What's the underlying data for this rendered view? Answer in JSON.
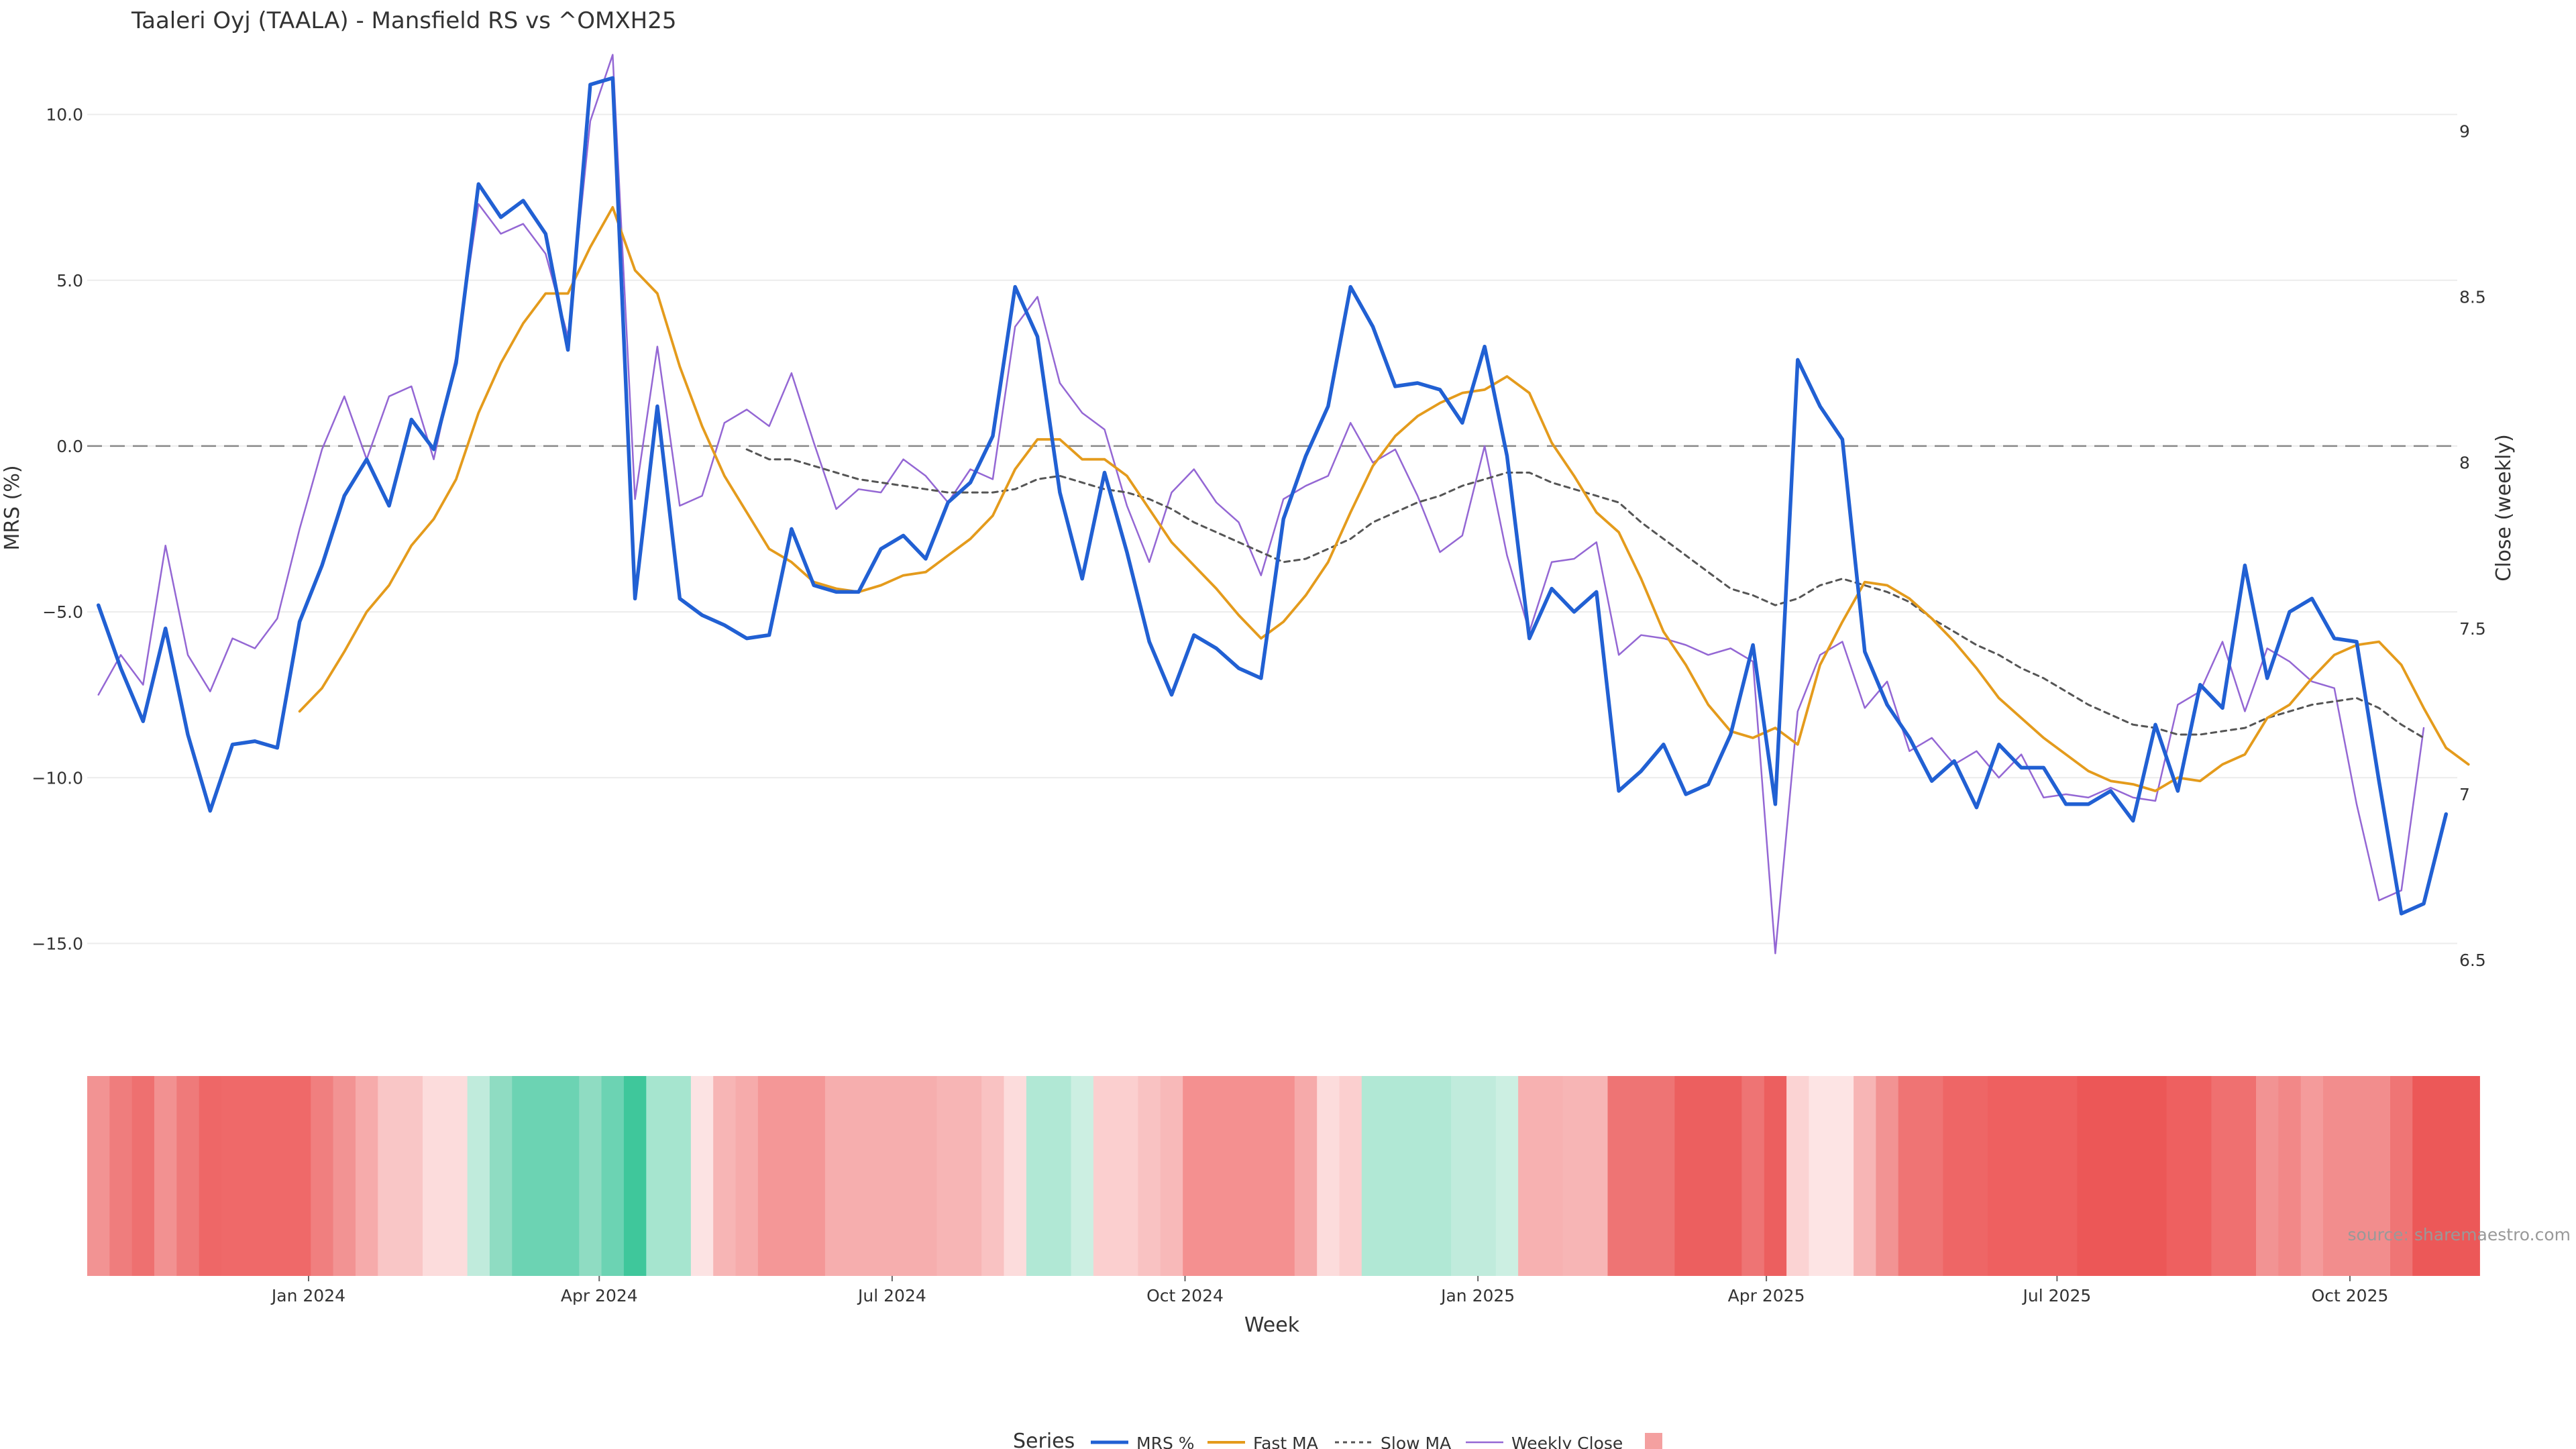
{
  "chart_data": {
    "type": "line",
    "title": "Taaleri Oyj (TAALA) - Mansfield RS vs ^OMXH25",
    "xlabel": "Week",
    "ylabel_left": "MRS (%)",
    "ylabel_right": "Close (weekly)",
    "ylim_left": [
      -17.5,
      12.5
    ],
    "ylim_right": [
      6.3,
      9.3
    ],
    "yticks_left": [
      10,
      5,
      0,
      -5,
      -10,
      -15
    ],
    "ytick_labels_left": [
      "10.0",
      "5.0",
      "0.0",
      "−5.0",
      "−10.0",
      "−15.0"
    ],
    "yticks_right": [
      9,
      8.5,
      8,
      7.5,
      7,
      6.5
    ],
    "ytick_labels_right": [
      "9",
      "8.5",
      "8",
      "7.5",
      "7",
      "6.5"
    ],
    "x_start_week": 0,
    "x_end_week": 106,
    "xticks": [
      {
        "label": "Jan 2024",
        "week": 9.9
      },
      {
        "label": "Apr 2024",
        "week": 22.9
      },
      {
        "label": "Jul 2024",
        "week": 36
      },
      {
        "label": "Oct 2024",
        "week": 49.1
      },
      {
        "label": "Jan 2025",
        "week": 62.2
      },
      {
        "label": "Apr 2025",
        "week": 75.1
      },
      {
        "label": "Jul 2025",
        "week": 88.1
      },
      {
        "label": "Oct 2025",
        "week": 101.2
      }
    ],
    "zero_line": 0,
    "series": [
      {
        "name": "MRS %",
        "color": "#2160d3",
        "style": "solid",
        "axis": "left",
        "start": 0.5,
        "values": [
          -4.8,
          -6.7,
          -8.3,
          -5.5,
          -8.7,
          -11.0,
          -9.0,
          -8.9,
          -9.1,
          -5.3,
          -3.6,
          -1.5,
          -0.4,
          -1.8,
          0.8,
          -0.1,
          2.5,
          7.9,
          6.9,
          7.4,
          6.4,
          2.9,
          10.9,
          11.1,
          -4.6,
          1.2,
          -4.6,
          -5.1,
          -5.4,
          -5.8,
          -5.7,
          -2.5,
          -4.2,
          -4.4,
          -4.4,
          -3.1,
          -2.7,
          -3.4,
          -1.7,
          -1.1,
          0.3,
          4.8,
          3.3,
          -1.4,
          -4.0,
          -0.8,
          -3.2,
          -5.9,
          -7.5,
          -5.7,
          -6.1,
          -6.7,
          -7.0,
          -2.2,
          -0.3,
          1.2,
          4.8,
          3.6,
          1.8,
          1.9,
          1.7,
          0.7,
          3.0,
          -0.3,
          -5.8,
          -4.3,
          -5.0,
          -4.4,
          -10.4,
          -9.8,
          -9.0,
          -10.5,
          -10.2,
          -8.7,
          -6.0,
          -10.8,
          2.6,
          1.2,
          0.2,
          -6.2,
          -7.8,
          -8.8,
          -10.1,
          -9.5,
          -10.9,
          -9.0,
          -9.7,
          -9.7,
          -10.8,
          -10.8,
          -10.4,
          -11.3,
          -8.4,
          -10.4,
          -7.2,
          -7.9,
          -3.6,
          -7.0,
          -5.0,
          -4.6,
          -5.8,
          -5.9,
          -10.1,
          -14.1,
          -13.8,
          -11.1
        ]
      },
      {
        "name": "Fast MA",
        "color": "#e49b1c",
        "style": "solid",
        "axis": "left",
        "start": 9.5,
        "values": [
          -8.0,
          -7.3,
          -6.2,
          -5.0,
          -4.2,
          -3.0,
          -2.2,
          -1.0,
          1.0,
          2.5,
          3.7,
          4.6,
          4.6,
          6.0,
          7.2,
          5.3,
          4.6,
          2.4,
          0.6,
          -0.9,
          -2.0,
          -3.1,
          -3.5,
          -4.1,
          -4.3,
          -4.4,
          -4.2,
          -3.9,
          -3.8,
          -3.3,
          -2.8,
          -2.1,
          -0.7,
          0.2,
          0.2,
          -0.4,
          -0.4,
          -0.9,
          -1.9,
          -2.9,
          -3.6,
          -4.3,
          -5.1,
          -5.8,
          -5.3,
          -4.5,
          -3.5,
          -2.0,
          -0.6,
          0.3,
          0.9,
          1.3,
          1.6,
          1.7,
          2.1,
          1.6,
          0.1,
          -0.9,
          -2.0,
          -2.6,
          -4.0,
          -5.6,
          -6.6,
          -7.8,
          -8.6,
          -8.8,
          -8.5,
          -9.0,
          -6.6,
          -5.3,
          -4.1,
          -4.2,
          -4.6,
          -5.2,
          -5.9,
          -6.7,
          -7.6,
          -8.2,
          -8.8,
          -9.3,
          -9.8,
          -10.1,
          -10.2,
          -10.4,
          -10.0,
          -10.1,
          -9.6,
          -9.3,
          -8.2,
          -7.8,
          -7.0,
          -6.3,
          -6.0,
          -5.9,
          -6.6,
          -7.9,
          -9.1,
          -9.6
        ]
      },
      {
        "name": "Slow MA",
        "color": "#555555",
        "style": "dashed",
        "axis": "left",
        "start": 29.5,
        "values": [
          -0.1,
          -0.4,
          -0.4,
          -0.6,
          -0.8,
          -1.0,
          -1.1,
          -1.2,
          -1.3,
          -1.4,
          -1.4,
          -1.4,
          -1.3,
          -1.0,
          -0.9,
          -1.1,
          -1.3,
          -1.4,
          -1.6,
          -1.9,
          -2.3,
          -2.6,
          -2.9,
          -3.2,
          -3.5,
          -3.4,
          -3.1,
          -2.8,
          -2.3,
          -2.0,
          -1.7,
          -1.5,
          -1.2,
          -1.0,
          -0.8,
          -0.8,
          -1.1,
          -1.3,
          -1.5,
          -1.7,
          -2.3,
          -2.8,
          -3.3,
          -3.8,
          -4.3,
          -4.5,
          -4.8,
          -4.6,
          -4.2,
          -4.0,
          -4.2,
          -4.4,
          -4.7,
          -5.2,
          -5.6,
          -6.0,
          -6.3,
          -6.7,
          -7.0,
          -7.4,
          -7.8,
          -8.1,
          -8.4,
          -8.5,
          -8.7,
          -8.7,
          -8.6,
          -8.5,
          -8.2,
          -8.0,
          -7.8,
          -7.7,
          -7.6,
          -7.9,
          -8.4,
          -8.8
        ]
      },
      {
        "name": "Weekly Close",
        "color": "#9467d4",
        "style": "thin",
        "axis": "right",
        "start": 0.5,
        "values": [
          7.3,
          7.42,
          7.33,
          7.75,
          7.42,
          7.31,
          7.47,
          7.44,
          7.53,
          7.8,
          8.04,
          8.2,
          8.01,
          8.2,
          8.23,
          8.01,
          8.32,
          8.78,
          8.69,
          8.72,
          8.63,
          8.38,
          9.03,
          9.23,
          7.89,
          8.35,
          7.87,
          7.9,
          8.12,
          8.16,
          8.11,
          8.27,
          8.06,
          7.86,
          7.92,
          7.91,
          8.01,
          7.96,
          7.88,
          7.98,
          7.95,
          8.41,
          8.5,
          8.24,
          8.15,
          8.1,
          7.87,
          7.7,
          7.91,
          7.98,
          7.88,
          7.82,
          7.66,
          7.89,
          7.93,
          7.96,
          8.12,
          8.0,
          8.04,
          7.9,
          7.73,
          7.78,
          8.05,
          7.72,
          7.49,
          7.7,
          7.71,
          7.76,
          7.42,
          7.48,
          7.47,
          7.45,
          7.42,
          7.44,
          7.4,
          6.52,
          7.25,
          7.42,
          7.46,
          7.26,
          7.34,
          7.13,
          7.17,
          7.09,
          7.13,
          7.05,
          7.12,
          6.99,
          7.0,
          6.99,
          7.02,
          6.99,
          6.98,
          7.27,
          7.31,
          7.46,
          7.25,
          7.44,
          7.4,
          7.34,
          7.32,
          6.97,
          6.68,
          6.71,
          7.2
        ]
      }
    ],
    "heatmap": {
      "label": "MRS % heat strip",
      "start": 0,
      "cells": [
        [
          "#f29393",
          1
        ],
        [
          "#ef7d7d",
          1
        ],
        [
          "#ee7070",
          1
        ],
        [
          "#f29191",
          1
        ],
        [
          "#ef7a7a",
          1
        ],
        [
          "#ee6767",
          1
        ],
        [
          "#ef6969",
          4
        ],
        [
          "#f07f7f",
          1
        ],
        [
          "#f29393",
          1
        ],
        [
          "#f6abab",
          1
        ],
        [
          "#f9c6c6",
          2
        ],
        [
          "#fcdcdc",
          2
        ],
        [
          "#c0ebdc",
          1
        ],
        [
          "#8fdcc2",
          1
        ],
        [
          "#6cd3b3",
          3
        ],
        [
          "#8fdcc2",
          1
        ],
        [
          "#6cd3b3",
          1
        ],
        [
          "#3fc79b",
          1
        ],
        [
          "#a6e5cf",
          2
        ],
        [
          "#fce3e3",
          1
        ],
        [
          "#f7b5b5",
          1
        ],
        [
          "#f6abab",
          1
        ],
        [
          "#f49797",
          3
        ],
        [
          "#f6aeae",
          5
        ],
        [
          "#f7b5b5",
          2
        ],
        [
          "#f9c2c2",
          1
        ],
        [
          "#fcdcdc",
          1
        ],
        [
          "#b1e8d5",
          2
        ],
        [
          "#ccefe2",
          1
        ],
        [
          "#fbcfcf",
          2
        ],
        [
          "#f9c2c2",
          1
        ],
        [
          "#f8b9b9",
          1
        ],
        [
          "#f49090",
          5
        ],
        [
          "#f6aaaa",
          1
        ],
        [
          "#fcdcdc",
          1
        ],
        [
          "#fbcfcf",
          1
        ],
        [
          "#b1e8d5",
          4
        ],
        [
          "#c0ebdc",
          2
        ],
        [
          "#ccefe2",
          1
        ],
        [
          "#f7b1b1",
          2
        ],
        [
          "#f7b5b5",
          2
        ],
        [
          "#ee7474",
          3
        ],
        [
          "#ec5f5f",
          3
        ],
        [
          "#ee7474",
          1
        ],
        [
          "#ec5f5f",
          1
        ],
        [
          "#fbd3d3",
          1
        ],
        [
          "#fde4e4",
          2
        ],
        [
          "#f7b5b5",
          1
        ],
        [
          "#f29393",
          1
        ],
        [
          "#ef7474",
          2
        ],
        [
          "#ee6666",
          2
        ],
        [
          "#ee6060",
          4
        ],
        [
          "#ec5757",
          4
        ],
        [
          "#ee6060",
          2
        ],
        [
          "#ef7070",
          2
        ],
        [
          "#f29393",
          1
        ],
        [
          "#f28888",
          1
        ],
        [
          "#f49b9b",
          1
        ],
        [
          "#f28d8d",
          3
        ],
        [
          "#ef7575",
          1
        ],
        [
          "#ec5858",
          3
        ]
      ]
    },
    "legend_title": "Series",
    "legend_items": [
      "MRS %",
      "Fast MA",
      "Slow MA",
      "Weekly Close",
      ""
    ],
    "legend_colors": [
      "#2160d3",
      "#e49b1c",
      "#555555",
      "#9467d4",
      "#f4a0a0"
    ],
    "source": "source: sharemaestro.com"
  }
}
